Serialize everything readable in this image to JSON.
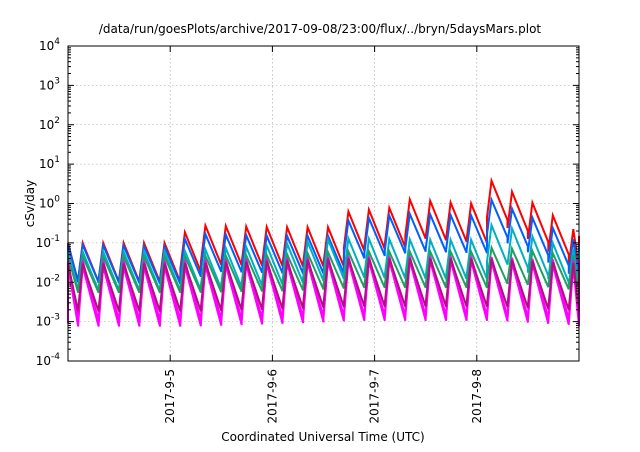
{
  "chart_data": {
    "type": "line",
    "title": "/data/run/goesPlots/archive/2017-09-08/23:00/flux/../bryn/5daysMars.plot",
    "xlabel": "Coordinated Universal Time (UTC)",
    "ylabel": "cSv/day",
    "y_scale": "log",
    "ylim": [
      0.0001,
      10000
    ],
    "y_ticks": [
      {
        "value": 0.0001,
        "base": "10",
        "exp": "-4"
      },
      {
        "value": 0.001,
        "base": "10",
        "exp": "-3"
      },
      {
        "value": 0.01,
        "base": "10",
        "exp": "-2"
      },
      {
        "value": 0.1,
        "base": "10",
        "exp": "-1"
      },
      {
        "value": 1,
        "base": "10",
        "exp": "0"
      },
      {
        "value": 10,
        "base": "10",
        "exp": "1"
      },
      {
        "value": 100,
        "base": "10",
        "exp": "2"
      },
      {
        "value": 1000,
        "base": "10",
        "exp": "3"
      },
      {
        "value": 10000,
        "base": "10",
        "exp": "4"
      }
    ],
    "xlim": [
      "2017-09-04",
      "2017-09-09"
    ],
    "x_ticks": [
      {
        "value": "2017-09-05",
        "label": "2017-9-5"
      },
      {
        "value": "2017-09-06",
        "label": "2017-9-6"
      },
      {
        "value": "2017-09-07",
        "label": "2017-9-7"
      },
      {
        "value": "2017-09-08",
        "label": "2017-9-8"
      }
    ],
    "grid": true,
    "sawtooth_period_hours": 4.8,
    "series": [
      {
        "color": "#ff0000",
        "peak_points": [
          [
            "2017-09-04",
            0.1
          ],
          [
            "2017-09-05",
            0.1
          ],
          [
            "2017-09-05 04:00",
            0.28
          ],
          [
            "2017-09-06",
            0.25
          ],
          [
            "2017-09-06 14:00",
            0.25
          ],
          [
            "2017-09-06 15:00",
            0.6
          ],
          [
            "2017-09-07 04:00",
            0.8
          ],
          [
            "2017-09-07 06:00",
            1.3
          ],
          [
            "2017-09-07 20:00",
            1.0
          ],
          [
            "2017-09-08 01:00",
            1.0
          ],
          [
            "2017-09-08 02:00",
            4.0
          ],
          [
            "2017-09-08 14:00",
            0.8
          ],
          [
            "2017-09-09",
            0.15
          ]
        ],
        "trough_ratio": 0.1
      },
      {
        "color": "#0060ff",
        "peak_points": [
          [
            "2017-09-04",
            0.09
          ],
          [
            "2017-09-05",
            0.08
          ],
          [
            "2017-09-05 04:00",
            0.17
          ],
          [
            "2017-09-06",
            0.15
          ],
          [
            "2017-09-06 14:00",
            0.15
          ],
          [
            "2017-09-06 15:00",
            0.35
          ],
          [
            "2017-09-07 06:00",
            0.55
          ],
          [
            "2017-09-07 20:00",
            0.5
          ],
          [
            "2017-09-08 01:00",
            0.5
          ],
          [
            "2017-09-08 02:00",
            1.3
          ],
          [
            "2017-09-08 14:00",
            0.35
          ],
          [
            "2017-09-09",
            0.09
          ]
        ],
        "trough_ratio": 0.11
      },
      {
        "color": "#00b0c0",
        "peak_points": [
          [
            "2017-09-04",
            0.06
          ],
          [
            "2017-09-05",
            0.06
          ],
          [
            "2017-09-06",
            0.09
          ],
          [
            "2017-09-06 15:00",
            0.13
          ],
          [
            "2017-09-07 12:00",
            0.12
          ],
          [
            "2017-09-08",
            0.12
          ],
          [
            "2017-09-08 03:00",
            0.35
          ],
          [
            "2017-09-08 14:00",
            0.12
          ],
          [
            "2017-09-09",
            0.06
          ]
        ],
        "trough_ratio": 0.1
      },
      {
        "color": "#20a060",
        "peak_points": [
          [
            "2017-09-04",
            0.045
          ],
          [
            "2017-09-05",
            0.045
          ],
          [
            "2017-09-06",
            0.05
          ],
          [
            "2017-09-06 15:00",
            0.06
          ],
          [
            "2017-09-08",
            0.06
          ],
          [
            "2017-09-08 03:00",
            0.08
          ],
          [
            "2017-09-09",
            0.045
          ]
        ],
        "trough_ratio": 0.12
      },
      {
        "color": "#ff00ff",
        "peak_points": [
          [
            "2017-09-04",
            0.035
          ],
          [
            "2017-09-05",
            0.035
          ],
          [
            "2017-09-06",
            0.04
          ],
          [
            "2017-09-06 15:00",
            0.045
          ],
          [
            "2017-09-08",
            0.045
          ],
          [
            "2017-09-09",
            0.035
          ]
        ],
        "trough_ratio": 0.03
      },
      {
        "color": "#ff00ff",
        "peak_points": [
          [
            "2017-09-04",
            0.025
          ],
          [
            "2017-09-05",
            0.025
          ],
          [
            "2017-09-06",
            0.03
          ],
          [
            "2017-09-06 15:00",
            0.035
          ],
          [
            "2017-09-08",
            0.035
          ],
          [
            "2017-09-09",
            0.025
          ]
        ],
        "trough_ratio": 0.03
      },
      {
        "color": "#b01080",
        "peak_points": [
          [
            "2017-09-04",
            0.03
          ],
          [
            "2017-09-05",
            0.03
          ],
          [
            "2017-09-06",
            0.035
          ],
          [
            "2017-09-06 15:00",
            0.04
          ],
          [
            "2017-09-08",
            0.04
          ],
          [
            "2017-09-09",
            0.03
          ]
        ],
        "trough_ratio": 0.06
      }
    ]
  }
}
